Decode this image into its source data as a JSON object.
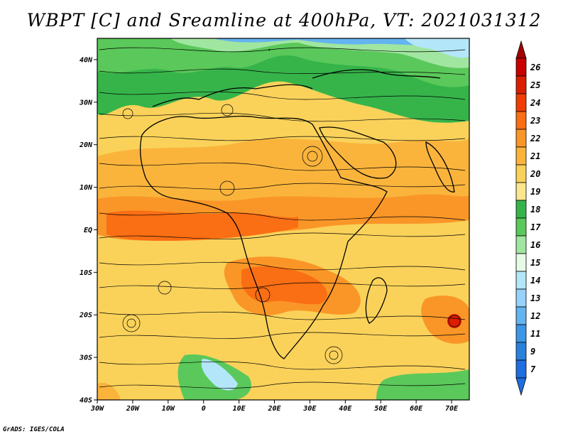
{
  "title": "WBPT [C] and Sreamline at 400hPa, VT: 2021031312",
  "footer": "GrADS: IGES/COLA",
  "map": {
    "lon_range": [
      -30,
      75
    ],
    "lat_range": [
      -40,
      45
    ],
    "lat_ticks": [
      {
        "value": 40,
        "label": "40N"
      },
      {
        "value": 30,
        "label": "30N"
      },
      {
        "value": 20,
        "label": "20N"
      },
      {
        "value": 10,
        "label": "10N"
      },
      {
        "value": 0,
        "label": "EQ"
      },
      {
        "value": -10,
        "label": "10S"
      },
      {
        "value": -20,
        "label": "20S"
      },
      {
        "value": -30,
        "label": "30S"
      },
      {
        "value": -40,
        "label": "40S"
      }
    ],
    "lon_ticks": [
      {
        "value": -30,
        "label": "30W"
      },
      {
        "value": -20,
        "label": "20W"
      },
      {
        "value": -10,
        "label": "10W"
      },
      {
        "value": 0,
        "label": "0"
      },
      {
        "value": 10,
        "label": "10E"
      },
      {
        "value": 20,
        "label": "20E"
      },
      {
        "value": 30,
        "label": "30E"
      },
      {
        "value": 40,
        "label": "40E"
      },
      {
        "value": 50,
        "label": "50E"
      },
      {
        "value": 60,
        "label": "60E"
      },
      {
        "value": 70,
        "label": "70E"
      }
    ]
  },
  "colorbar": {
    "arrow_top_color": "#a50000",
    "arrow_bottom_color": "#1e6ee0",
    "levels": [
      {
        "label": "26",
        "color": "#c80000"
      },
      {
        "label": "25",
        "color": "#dc1e00"
      },
      {
        "label": "24",
        "color": "#f03c00"
      },
      {
        "label": "23",
        "color": "#fa6e14"
      },
      {
        "label": "22",
        "color": "#fa9628"
      },
      {
        "label": "21",
        "color": "#fab43c"
      },
      {
        "label": "20",
        "color": "#fad25a"
      },
      {
        "label": "19",
        "color": "#fae68c"
      },
      {
        "label": "18",
        "color": "#36b44a"
      },
      {
        "label": "17",
        "color": "#5ac85a"
      },
      {
        "label": "16",
        "color": "#a0e6a0"
      },
      {
        "label": "15",
        "color": "#e6fae6"
      },
      {
        "label": "14",
        "color": "#b4e6fa"
      },
      {
        "label": "13",
        "color": "#96d2fa"
      },
      {
        "label": "12",
        "color": "#64b4f0"
      },
      {
        "label": "11",
        "color": "#3c96e6"
      },
      {
        "label": "9",
        "color": "#2882dc"
      },
      {
        "label": "7",
        "color": "#1e6ee0"
      }
    ]
  }
}
